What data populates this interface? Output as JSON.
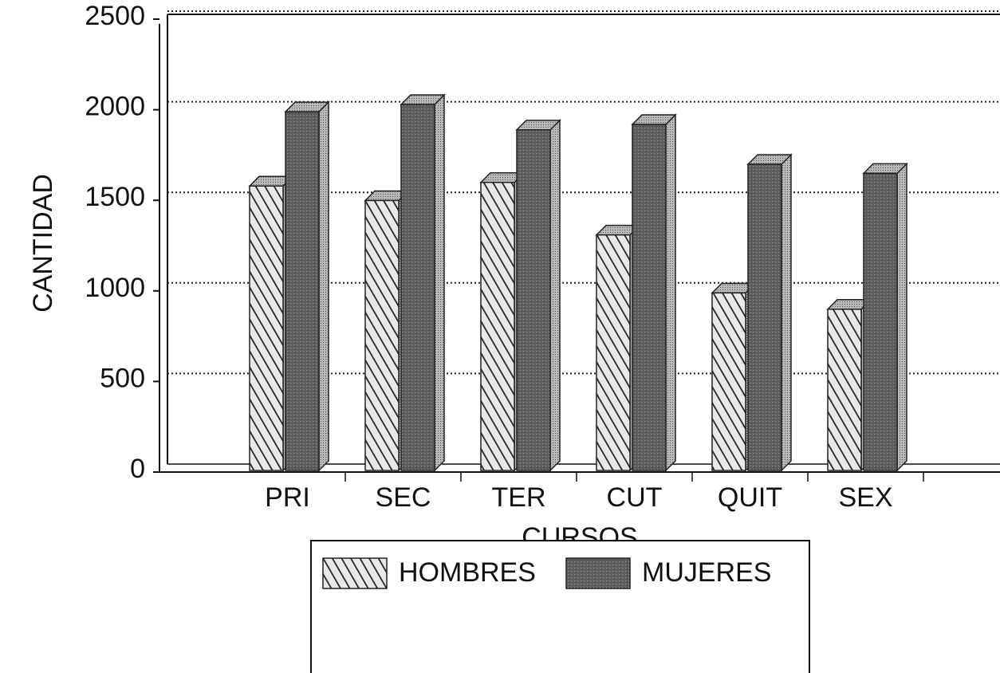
{
  "chart_data": {
    "type": "bar3d",
    "x_label": "CURSOS",
    "y_label": "CANTIDAD",
    "categories": [
      "PRI",
      "SEC",
      "TER",
      "CUT",
      "QUIT",
      "SEX"
    ],
    "series": [
      {
        "name": "HOMBRES",
        "color": "#9a9a9a",
        "values": [
          1570,
          1490,
          1590,
          1300,
          980,
          890
        ]
      },
      {
        "name": "MUJERES",
        "color": "#5e5e5e",
        "values": [
          1980,
          2020,
          1880,
          1910,
          1690,
          1640
        ]
      }
    ],
    "ylim": [
      0,
      2500
    ],
    "yticks": [
      0,
      500,
      1000,
      1500,
      2000,
      2500
    ],
    "grid": true,
    "legend": "bottom"
  }
}
